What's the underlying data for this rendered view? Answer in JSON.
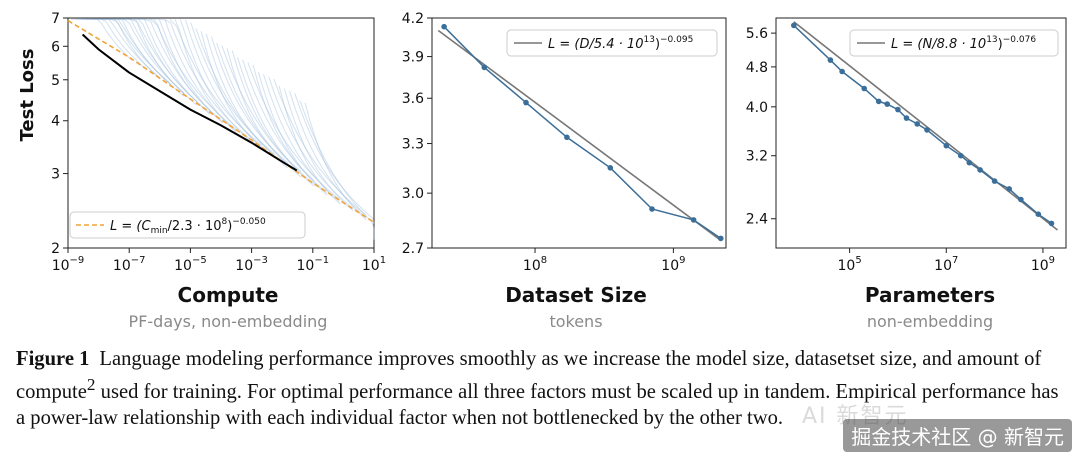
{
  "chart_data": [
    {
      "type": "line",
      "title": "Compute",
      "subtitle": "PF-days, non-embedding",
      "xlabel": "Compute",
      "ylabel": "Test Loss",
      "xscale": "log",
      "yscale": "log",
      "xlim": [
        1e-09,
        10
      ],
      "ylim": [
        2,
        7
      ],
      "x_ticks": [
        "10−9",
        "10−7",
        "10−5",
        "10−3",
        "10−1",
        "101"
      ],
      "y_ticks": [
        "2",
        "3",
        "4",
        "5",
        "6",
        "7"
      ],
      "legend": {
        "placement": "lower-left",
        "entries": [
          "L = (Cmin/2.3 · 10^8)^−0.050"
        ]
      },
      "legend_text": {
        "pre": "L = (C",
        "sub": "min",
        "mid": "/2.3 · 10",
        "sup8": "8",
        "post": ")",
        "exp": "−0.050"
      },
      "series": [
        {
          "name": "L = (Cmin/2.3 · 10^8)^−0.050",
          "style": "dashed",
          "color": "#f0a43a",
          "x": [
            1e-09,
            1e-07,
            1e-05,
            0.001,
            0.1,
            10
          ],
          "y": [
            6.9,
            5.65,
            4.5,
            3.6,
            2.85,
            2.3
          ]
        },
        {
          "name": "frontier",
          "color": "#000000",
          "x": [
            3e-09,
            1e-08,
            1e-07,
            1e-06,
            1e-05,
            0.0001,
            0.001,
            0.01,
            0.03
          ],
          "y": [
            6.4,
            5.9,
            5.2,
            4.7,
            4.25,
            3.9,
            3.55,
            3.2,
            3.05
          ]
        }
      ],
      "learning_curves_color": "#9dbcdc"
    },
    {
      "type": "line",
      "title": "Dataset Size",
      "subtitle": "tokens",
      "xlabel": "Dataset Size",
      "xscale": "log",
      "yscale": "log",
      "xlim": [
        18000000.0,
        2400000000.0
      ],
      "ylim": [
        2.7,
        4.2
      ],
      "x_ticks": [
        {
          "value": 100000000.0,
          "base": "10",
          "exp": "8"
        },
        {
          "value": 1000000000.0,
          "base": "10",
          "exp": "9"
        }
      ],
      "y_ticks": [
        "2.7",
        "3.0",
        "3.3",
        "3.6",
        "3.9",
        "4.2"
      ],
      "legend": {
        "placement": "top-right",
        "entries": [
          "L = (D/5.4 · 10^13)^−0.095"
        ]
      },
      "legend_text": {
        "pre": "L = (D/5.4 · 10",
        "sup": "13",
        "post": ")",
        "exp": "−0.095"
      },
      "series": [
        {
          "name": "L = (D/5.4 · 10^13)^−0.095",
          "color": "#777777",
          "x": [
            20000000.0,
            2200000000.0
          ],
          "y": [
            4.1,
            2.74
          ]
        },
        {
          "name": "data",
          "color": "#3b6e99",
          "x": [
            22000000.0,
            43000000.0,
            86000000.0,
            170000000.0,
            350000000.0,
            700000000.0,
            1400000000.0,
            2200000000.0
          ],
          "y": [
            4.13,
            3.82,
            3.57,
            3.34,
            3.15,
            2.91,
            2.85,
            2.75
          ]
        }
      ]
    },
    {
      "type": "line",
      "title": "Parameters",
      "subtitle": "non-embedding",
      "xlabel": "Parameters",
      "xscale": "log",
      "yscale": "log",
      "xlim": [
        3000.0,
        3000000000.0
      ],
      "ylim": [
        2.1,
        6.0
      ],
      "x_ticks": [
        {
          "value": 100000.0,
          "base": "10",
          "exp": "5"
        },
        {
          "value": 10000000.0,
          "base": "10",
          "exp": "7"
        },
        {
          "value": 1000000000.0,
          "base": "10",
          "exp": "9"
        }
      ],
      "y_ticks": [
        "2.4",
        "3.2",
        "4.0",
        "4.8",
        "5.6"
      ],
      "legend": {
        "placement": "top-right",
        "entries": [
          "L = (N/8.8 · 10^13)^−0.076"
        ]
      },
      "legend_text": {
        "pre": "L = (N/8.8 · 10",
        "sup": "13",
        "post": ")",
        "exp": "−0.076"
      },
      "series": [
        {
          "name": "L = (N/8.8 · 10^13)^−0.076",
          "color": "#777777",
          "x": [
            7000.0,
            2000000000.0
          ],
          "y": [
            5.9,
            2.28
          ]
        },
        {
          "name": "data",
          "color": "#3b6e99",
          "x": [
            7000.0,
            40000.0,
            70000.0,
            200000.0,
            400000.0,
            600000.0,
            1000000.0,
            1500000.0,
            2500000.0,
            4000000.0,
            10000000.0,
            20000000.0,
            30000000.0,
            50000000.0,
            100000000.0,
            200000000.0,
            350000000.0,
            800000000.0,
            1500000000.0
          ],
          "y": [
            5.8,
            4.95,
            4.7,
            4.35,
            4.1,
            4.05,
            3.95,
            3.8,
            3.7,
            3.6,
            3.35,
            3.2,
            3.1,
            3.0,
            2.85,
            2.75,
            2.62,
            2.45,
            2.35
          ]
        }
      ]
    }
  ],
  "caption": {
    "label": "Figure 1",
    "text_before_sup": "Language modeling performance improves smoothly as we increase the model size, datasetset size, and amount of compute",
    "sup": "2",
    "text_after_sup": " used for training. For optimal performance all three factors must be scaled up in tandem. Empirical performance has a power-law relationship with each individual factor when not bottlenecked by the other two."
  },
  "watermark": {
    "text": "掘金技术社区 @ 新智元",
    "ghost": "AI 新智元"
  },
  "colors": {
    "frontier": "#000000",
    "fit_dashed": "#f0a43a",
    "curves": "#9dbcdc",
    "points": "#3b6e99",
    "fit_line": "#777777",
    "subtitle": "#8a8a8a"
  }
}
